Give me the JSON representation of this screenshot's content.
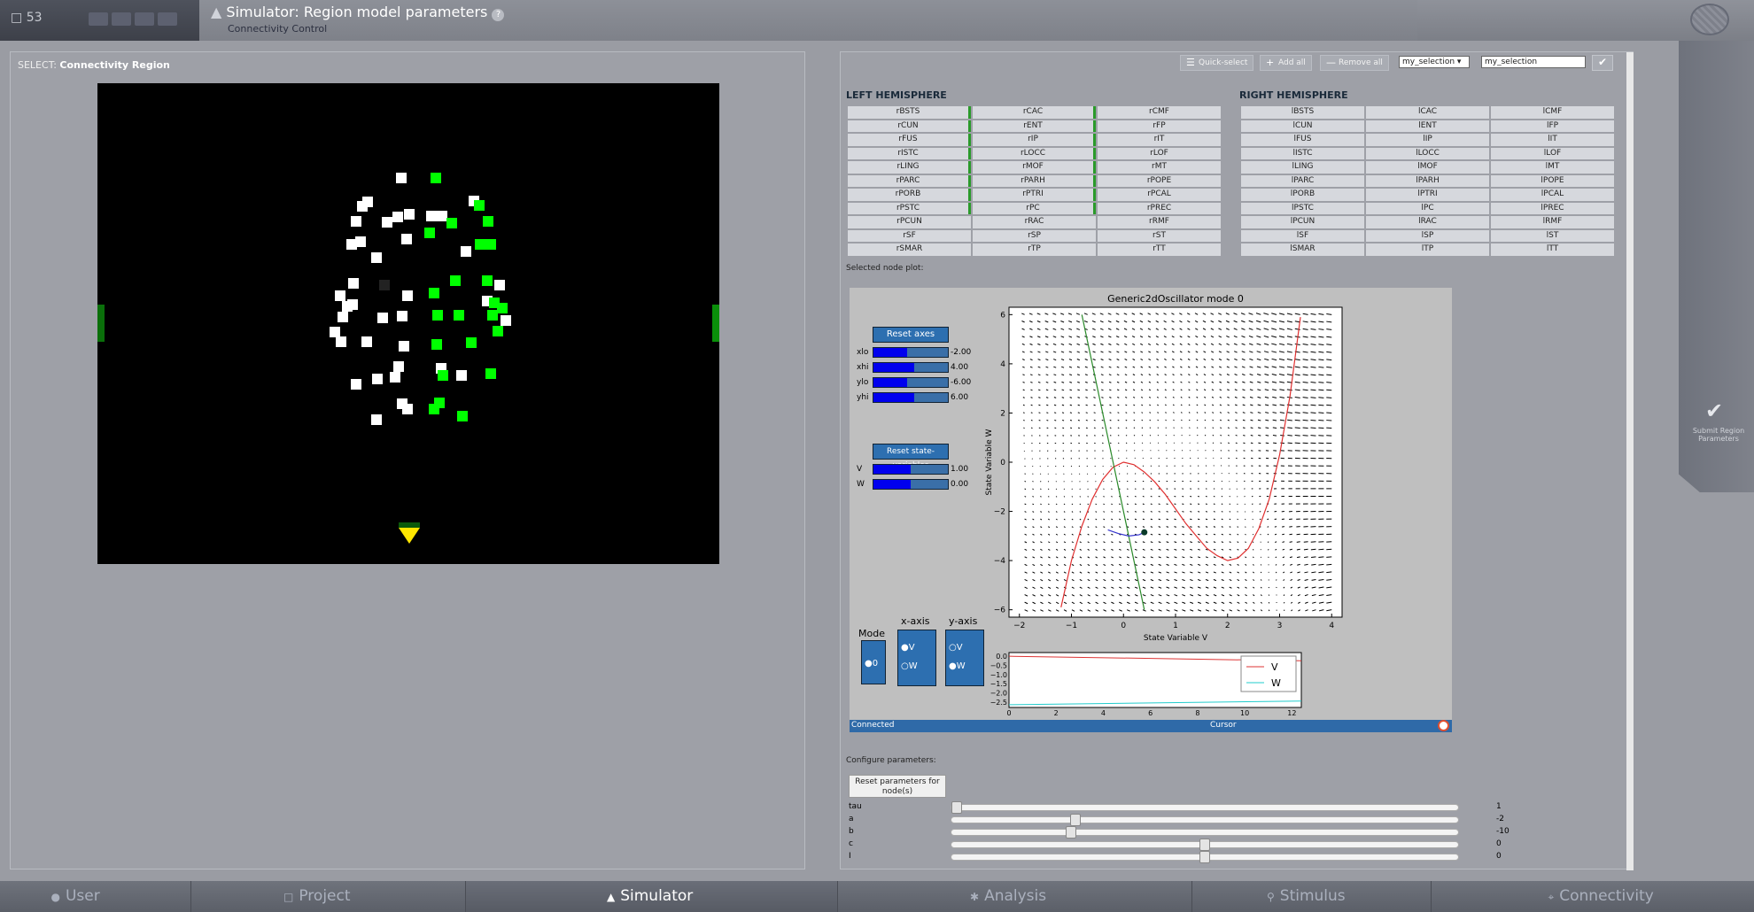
{
  "header": {
    "project_count": "53",
    "title": "Simulator: Region model parameters",
    "help_icon": "question-icon",
    "subtitle": "Connectivity Control",
    "submit_label": "Submit Region Parameters"
  },
  "left": {
    "select_prefix": "SELECT:",
    "select_value": "Connectivity Region"
  },
  "toolbar": {
    "quick_select": "Quick-select",
    "add_all": "Add all",
    "remove_all": "Remove all",
    "selection_dropdown": "my_selection",
    "selection_name": "my_selection"
  },
  "left_hemisphere": {
    "title": "LEFT HEMISPHERE",
    "cells": [
      "rBSTS",
      "rCAC",
      "rCMF",
      "rCUN",
      "rENT",
      "rFP",
      "rFUS",
      "rIP",
      "rIT",
      "rISTC",
      "rLOCC",
      "rLOF",
      "rLING",
      "rMOF",
      "rMT",
      "rPARC",
      "rPARH",
      "rPOPE",
      "rPORB",
      "rPTRI",
      "rPCAL",
      "rPSTC",
      "rPC",
      "rPREC",
      "rPCUN",
      "rRAC",
      "rRMF",
      "rSF",
      "rSP",
      "rST",
      "rSMAR",
      "rTP",
      "rTT"
    ]
  },
  "right_hemisphere": {
    "title": "RIGHT HEMISPHERE",
    "cells": [
      "lBSTS",
      "lCAC",
      "lCMF",
      "lCUN",
      "lENT",
      "lFP",
      "lFUS",
      "lIP",
      "lIT",
      "lISTC",
      "lLOCC",
      "lLOF",
      "lLING",
      "lMOF",
      "lMT",
      "lPARC",
      "lPARH",
      "lPOPE",
      "lPORB",
      "lPTRI",
      "lPCAL",
      "lPSTC",
      "lPC",
      "lPREC",
      "lPCUN",
      "lRAC",
      "lRMF",
      "lSF",
      "lSP",
      "lST",
      "lSMAR",
      "lTP",
      "lTT"
    ]
  },
  "plot": {
    "section_label": "Selected node plot:",
    "reset_axes": "Reset axes",
    "axes_sliders": [
      {
        "label": "xlo",
        "value": "-2.00",
        "fill": 0.45
      },
      {
        "label": "xhi",
        "value": "4.00",
        "fill": 0.55
      },
      {
        "label": "ylo",
        "value": "-6.00",
        "fill": 0.45
      },
      {
        "label": "yhi",
        "value": "6.00",
        "fill": 0.55
      }
    ],
    "reset_state": "Reset state-variables",
    "state_sliders": [
      {
        "label": "V",
        "value": "1.00",
        "fill": 0.5
      },
      {
        "label": "W",
        "value": "0.00",
        "fill": 0.5
      }
    ],
    "mode_title": "Mode",
    "mode_option": "0",
    "xaxis_title": "x-axis",
    "xaxis_options": [
      "V",
      "W"
    ],
    "yaxis_title": "y-axis",
    "yaxis_options": [
      "V",
      "W"
    ],
    "status_left": "Connected",
    "status_center": "Cursor"
  },
  "chart_data": [
    {
      "type": "scatter",
      "title": "Generic2dOscillator mode 0",
      "xlabel": "State Variable V",
      "ylabel": "State Variable W",
      "xlim": [
        -2.2,
        4.2
      ],
      "ylim": [
        -6.3,
        6.3
      ],
      "xticks": [
        "−2",
        "−1",
        "0",
        "1",
        "2",
        "3",
        "4"
      ],
      "yticks": [
        "6",
        "4",
        "2",
        "0",
        "−2",
        "−4",
        "−6"
      ],
      "series": [
        {
          "name": "V-nullcline",
          "color": "#e03030",
          "x": [
            -1.2,
            -1.0,
            -0.8,
            -0.6,
            -0.4,
            -0.2,
            0.0,
            0.2,
            0.4,
            0.6,
            0.8,
            1.0,
            1.2,
            1.4,
            1.6,
            1.8,
            2.0,
            2.2,
            2.4,
            2.6,
            2.8,
            3.0,
            3.2,
            3.4
          ],
          "y": [
            -5.9,
            -4.0,
            -2.6,
            -1.5,
            -0.7,
            -0.2,
            0.0,
            -0.1,
            -0.4,
            -0.8,
            -1.3,
            -1.9,
            -2.5,
            -3.0,
            -3.5,
            -3.8,
            -4.0,
            -3.9,
            -3.5,
            -2.7,
            -1.5,
            0.3,
            2.7,
            5.9
          ]
        },
        {
          "name": "W-nullcline",
          "color": "#2a8a2a",
          "x": [
            -0.8,
            0.4
          ],
          "y": [
            6.0,
            -6.0
          ]
        },
        {
          "name": "trajectory",
          "color": "#3333cc",
          "x": [
            -0.3,
            -0.1,
            0.1,
            0.3,
            0.4
          ],
          "y": [
            -2.75,
            -2.9,
            -3.0,
            -2.95,
            -2.85
          ]
        }
      ],
      "point": {
        "x": 0.4,
        "y": -2.85
      }
    },
    {
      "type": "line",
      "xticks": [
        "0",
        "2",
        "4",
        "6",
        "8",
        "10",
        "12"
      ],
      "yticks": [
        "0.0",
        "−0.5",
        "−1.0",
        "−1.5",
        "−2.0",
        "−2.5"
      ],
      "xlim": [
        0,
        12.4
      ],
      "ylim": [
        -2.8,
        0.2
      ],
      "legend": [
        "V",
        "W"
      ],
      "series": [
        {
          "name": "V",
          "color": "#d33",
          "x": [
            0,
            12.4
          ],
          "y": [
            0.0,
            -0.25
          ]
        },
        {
          "name": "W",
          "color": "#2cc",
          "x": [
            0,
            12.4
          ],
          "y": [
            -2.65,
            -2.45
          ]
        }
      ]
    }
  ],
  "config": {
    "label": "Configure parameters:",
    "reset_button": "Reset parameters for node(s)",
    "params": [
      {
        "name": "tau",
        "value": "1",
        "pos": 0.0
      },
      {
        "name": "a",
        "value": "-2",
        "pos": 0.24
      },
      {
        "name": "b",
        "value": "-10",
        "pos": 0.23
      },
      {
        "name": "c",
        "value": "0",
        "pos": 0.5
      },
      {
        "name": "I",
        "value": "0",
        "pos": 0.5
      }
    ]
  },
  "nav": {
    "tabs": [
      "User",
      "Project",
      "Simulator",
      "Analysis",
      "Stimulus",
      "Connectivity"
    ]
  }
}
